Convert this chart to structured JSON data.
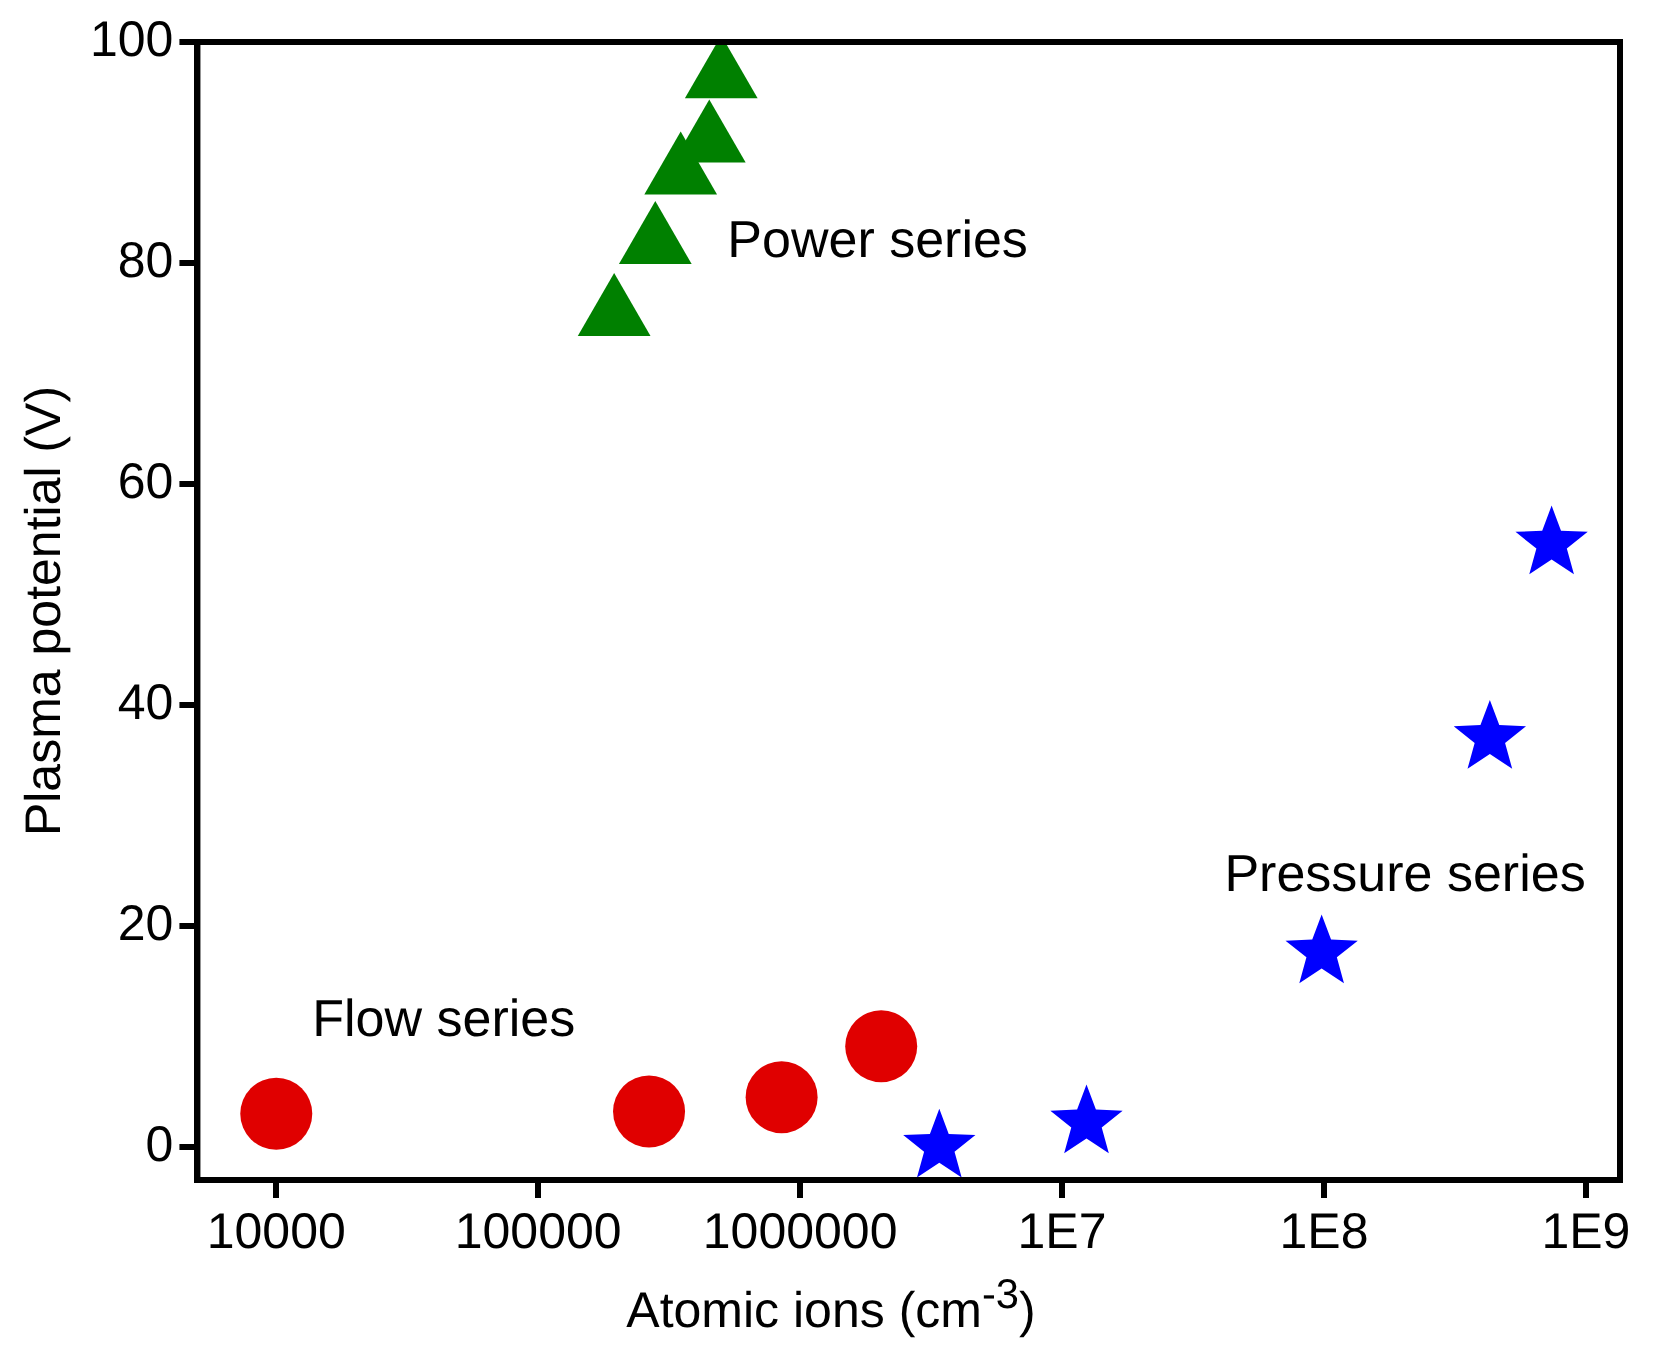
{
  "chart_data": {
    "type": "scatter",
    "xlabel": "Atomic ions (cm$^{-3}$)",
    "ylabel": "Plasma potential (V)",
    "log": "x",
    "xlim": [
      5000,
      1350000000
    ],
    "xticks": [
      10000,
      100000,
      1000000,
      {
        "value": 10000000,
        "label": "1E7"
      },
      {
        "value": 100000000,
        "label": "1E8"
      },
      {
        "value": 1000000000,
        "label": "1E9"
      }
    ],
    "ylim": [
      -3,
      100
    ],
    "yticks": [
      0,
      20,
      40,
      60,
      80,
      100
    ],
    "grid": false,
    "legend": false,
    "series": [
      {
        "name": "Flow series",
        "color": "#e00000",
        "marker": "circle",
        "x": [
          10000,
          265000,
          850000,
          2040000
        ],
        "values": [
          3.0,
          3.2,
          4.5,
          9.1
        ]
      },
      {
        "name": "Power series",
        "color": "#008000",
        "marker": "triangle",
        "x": [
          195000,
          280000,
          350000,
          450000,
          500000
        ],
        "values": [
          75.3,
          81.8,
          88.1,
          91,
          96.8
        ]
      },
      {
        "name": "Pressure series",
        "color": "#0000ff",
        "marker": "star",
        "x": [
          3400000,
          12400000,
          98000000,
          430000000,
          740000000
        ],
        "values": [
          0,
          2.2,
          17.6,
          37,
          54.6
        ]
      }
    ]
  }
}
